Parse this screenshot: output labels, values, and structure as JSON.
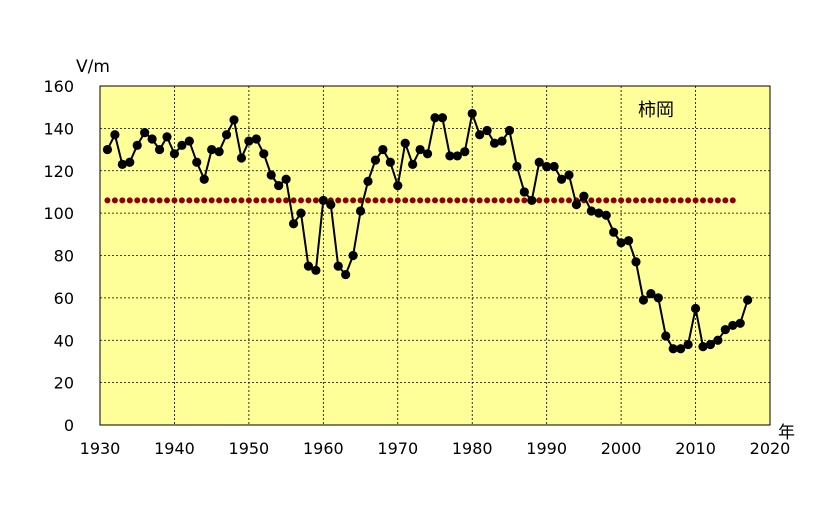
{
  "chart_data": {
    "type": "line",
    "ylabel": "V/m",
    "xlabel": "年",
    "annotation": "柿岡",
    "xlim": [
      1930,
      2020
    ],
    "ylim": [
      0,
      160
    ],
    "xticks": [
      1930,
      1940,
      1950,
      1960,
      1970,
      1980,
      1990,
      2000,
      2010,
      2020
    ],
    "yticks": [
      0,
      20,
      40,
      60,
      80,
      100,
      120,
      140,
      160
    ],
    "grid": true,
    "colors": {
      "plot_background": "#ffff99",
      "grid": "#000000",
      "series": "#000000",
      "reference": "#8b0000"
    },
    "series": [
      {
        "x": [
          1931,
          1932,
          1933,
          1934,
          1935,
          1936,
          1937,
          1938,
          1939,
          1940,
          1941,
          1942,
          1943,
          1944,
          1945,
          1946,
          1947,
          1948,
          1949,
          1950,
          1951,
          1952,
          1953,
          1954,
          1955,
          1956,
          1957,
          1958,
          1959,
          1960,
          1961,
          1962,
          1963,
          1964,
          1965,
          1966,
          1967,
          1968,
          1969,
          1970,
          1971,
          1972,
          1973,
          1974,
          1975,
          1976,
          1977,
          1978,
          1979,
          1980,
          1981,
          1982,
          1983,
          1984,
          1985,
          1986,
          1987,
          1988,
          1989,
          1990,
          1991,
          1992,
          1993,
          1994,
          1995,
          1996,
          1997,
          1998,
          1999,
          2000,
          2001,
          2002,
          2003,
          2004,
          2005,
          2006,
          2007,
          2008,
          2009,
          2010,
          2011,
          2012,
          2013,
          2014,
          2015,
          2016,
          2017
        ],
        "values": [
          130,
          137,
          123,
          124,
          132,
          138,
          135,
          130,
          136,
          128,
          132,
          134,
          124,
          116,
          130,
          129,
          137,
          144,
          126,
          134,
          135,
          128,
          118,
          113,
          116,
          95,
          100,
          75,
          73,
          106,
          104,
          75,
          71,
          80,
          101,
          115,
          125,
          130,
          124,
          113,
          133,
          123,
          130,
          128,
          145,
          145,
          127,
          127,
          129,
          147,
          137,
          139,
          133,
          134,
          139,
          122,
          110,
          106,
          124,
          122,
          122,
          116,
          118,
          104,
          108,
          101,
          100,
          99,
          91,
          86,
          87,
          77,
          59,
          62,
          60,
          42,
          36,
          36,
          38,
          55,
          37,
          38,
          40,
          45,
          47,
          48,
          59
        ]
      },
      {
        "x_start": 1931,
        "x_end": 2015,
        "value": 106
      }
    ]
  }
}
